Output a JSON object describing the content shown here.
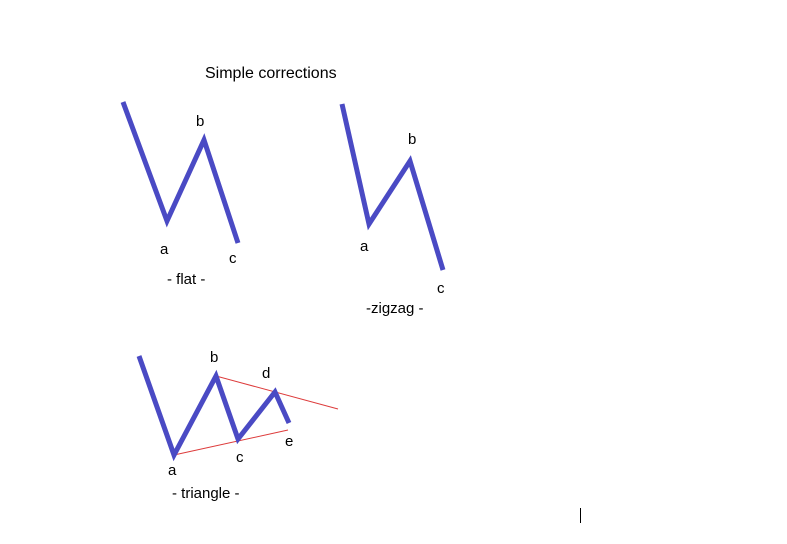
{
  "title": "Simple corrections",
  "colors": {
    "wave": "#4a4ac4",
    "trendline": "#dd3b3b",
    "text": "#000000",
    "background": "#ffffff"
  },
  "flat": {
    "caption": "- flat -",
    "labels": {
      "a": "a",
      "b": "b",
      "c": "c"
    }
  },
  "zigzag": {
    "caption": "-zigzag -",
    "labels": {
      "a": "a",
      "b": "b",
      "c": "c"
    }
  },
  "triangle": {
    "caption": "- triangle -",
    "labels": {
      "a": "a",
      "b": "b",
      "c": "c",
      "d": "d",
      "e": "e"
    }
  }
}
